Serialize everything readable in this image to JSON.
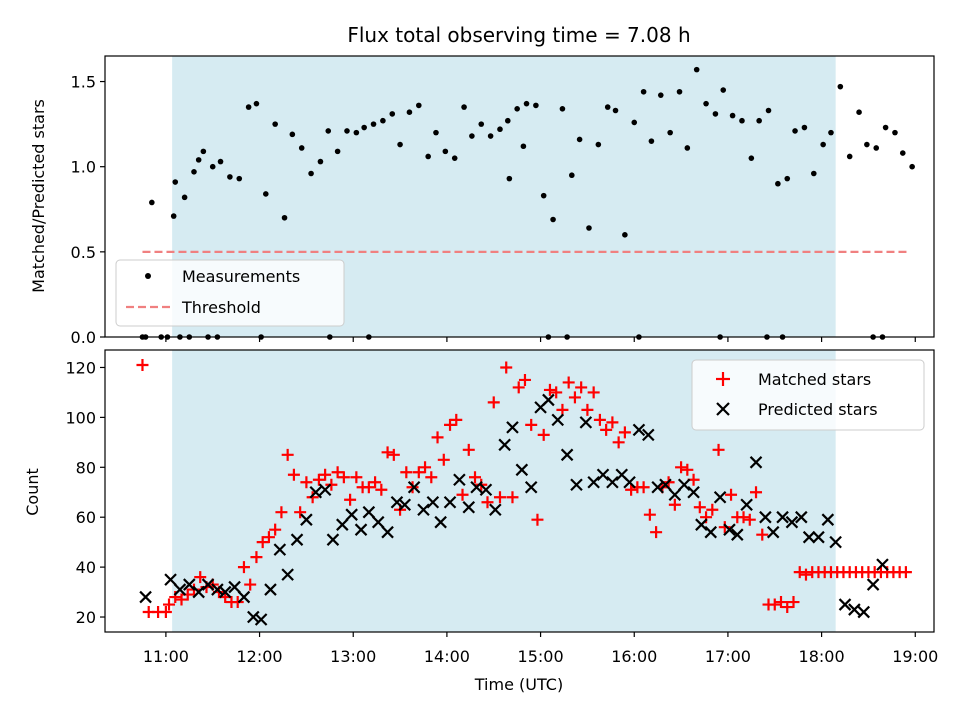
{
  "chart_data": [
    {
      "type": "scatter",
      "title": "Flux total observing time = 7.08 h",
      "xlabel": "",
      "ylabel": "Matched/Predicted stars",
      "xlim": [
        "10:21",
        "19:12"
      ],
      "ylim": [
        0,
        1.65
      ],
      "x_tick_labels": [
        "11:00",
        "12:00",
        "13:00",
        "14:00",
        "15:00",
        "16:00",
        "17:00",
        "18:00",
        "19:00"
      ],
      "y_ticks": [
        0.0,
        0.5,
        1.0,
        1.5
      ],
      "y_tick_labels": [
        "0.0",
        "0.5",
        "1.0",
        "1.5"
      ],
      "shaded_region": {
        "start": "11:04",
        "end": "18:09",
        "color": "#add8e6"
      },
      "legend_position": "lower-left",
      "series": [
        {
          "name": "Measurements",
          "marker": "dot",
          "color": "#000000",
          "x": [
            "10:47",
            "10:51",
            "10:57",
            "11:01",
            "11:06",
            "11:12",
            "11:18",
            "11:24",
            "11:30",
            "11:35",
            "11:41",
            "11:47",
            "11:53",
            "11:58",
            "12:04",
            "12:10",
            "12:16",
            "12:21",
            "12:27",
            "12:33",
            "12:39",
            "12:44",
            "12:50",
            "12:56",
            "13:02",
            "13:07",
            "13:13",
            "13:19",
            "13:25",
            "13:30",
            "13:36",
            "13:42",
            "13:48",
            "13:53",
            "13:59",
            "14:05",
            "14:11",
            "14:16",
            "14:22",
            "14:28",
            "14:34",
            "14:39",
            "14:45",
            "14:51",
            "14:57",
            "15:02",
            "15:08",
            "15:14",
            "15:20",
            "15:25",
            "15:31",
            "15:37",
            "15:43",
            "15:48",
            "15:54",
            "16:00",
            "16:06",
            "16:11",
            "16:17",
            "16:23",
            "16:29",
            "16:34",
            "16:40",
            "16:46",
            "16:52",
            "16:57",
            "17:03",
            "17:09",
            "17:15",
            "17:20",
            "17:26",
            "17:32",
            "17:38",
            "17:43",
            "17:49",
            "17:55",
            "18:01",
            "18:06",
            "18:12",
            "18:18",
            "18:24",
            "18:29",
            "18:35",
            "18:41",
            "18:47",
            "18:52",
            "18:58",
            "10:45",
            "11:05",
            "11:09",
            "11:15",
            "11:21",
            "11:27",
            "11:33",
            "12:01",
            "12:45",
            "13:10",
            "14:40",
            "14:49",
            "15:05",
            "15:17",
            "16:03",
            "16:55",
            "17:25",
            "17:35",
            "18:33",
            "18:39"
          ],
          "y": [
            0.0,
            0.79,
            0.0,
            0.0,
            0.91,
            0.82,
            0.97,
            1.09,
            1.0,
            1.03,
            0.94,
            0.93,
            1.35,
            1.37,
            0.84,
            1.25,
            0.7,
            1.19,
            1.11,
            0.96,
            1.03,
            1.21,
            1.09,
            1.21,
            1.2,
            1.23,
            1.25,
            1.27,
            1.31,
            1.13,
            1.32,
            1.36,
            1.06,
            1.2,
            1.09,
            1.05,
            1.35,
            1.18,
            1.25,
            1.18,
            1.22,
            1.27,
            1.34,
            1.37,
            1.36,
            0.83,
            0.69,
            1.34,
            0.95,
            1.16,
            0.64,
            1.13,
            1.35,
            1.33,
            0.6,
            1.26,
            1.44,
            1.15,
            1.42,
            1.2,
            1.44,
            1.11,
            1.57,
            1.37,
            1.31,
            1.45,
            1.3,
            1.27,
            1.05,
            1.27,
            1.33,
            0.9,
            0.93,
            1.21,
            1.23,
            0.96,
            1.13,
            1.2,
            1.47,
            1.06,
            1.32,
            1.13,
            1.11,
            1.23,
            1.2,
            1.08,
            1.0,
            0.0,
            0.71,
            0.0,
            0.0,
            1.04,
            0.0,
            0.0,
            0.0,
            0.0,
            0.0,
            0.93,
            1.12,
            0.0,
            0.0,
            0.0,
            0.0,
            0.0,
            0.0,
            0.0,
            0.0
          ]
        },
        {
          "name": "Threshold",
          "style": "dashed",
          "color": "#f08080",
          "x": [
            "10:45",
            "18:55"
          ],
          "y": [
            0.5,
            0.5
          ]
        }
      ]
    },
    {
      "type": "scatter",
      "title": "",
      "xlabel": "Time (UTC)",
      "ylabel": "Count",
      "xlim": [
        "10:21",
        "19:12"
      ],
      "ylim": [
        14,
        127
      ],
      "x_tick_labels": [
        "11:00",
        "12:00",
        "13:00",
        "14:00",
        "15:00",
        "16:00",
        "17:00",
        "18:00",
        "19:00"
      ],
      "y_ticks": [
        20,
        40,
        60,
        80,
        100,
        120
      ],
      "y_tick_labels": [
        "20",
        "40",
        "60",
        "80",
        "100",
        "120"
      ],
      "shaded_region": {
        "start": "11:04",
        "end": "18:09",
        "color": "#add8e6"
      },
      "legend_position": "upper-right",
      "series": [
        {
          "name": "Matched stars",
          "marker": "plus",
          "color": "#ff0000",
          "x": [
            "10:45",
            "10:49",
            "10:55",
            "11:00",
            "11:02",
            "11:06",
            "11:10",
            "11:14",
            "11:18",
            "11:22",
            "11:26",
            "11:30",
            "11:34",
            "11:38",
            "11:42",
            "11:46",
            "11:50",
            "11:54",
            "11:58",
            "12:02",
            "12:06",
            "12:10",
            "12:14",
            "12:18",
            "12:22",
            "12:26",
            "12:30",
            "12:34",
            "12:38",
            "12:42",
            "12:46",
            "12:50",
            "12:54",
            "12:58",
            "13:02",
            "13:06",
            "13:10",
            "13:14",
            "13:18",
            "13:22",
            "13:26",
            "13:30",
            "13:34",
            "13:38",
            "13:42",
            "13:46",
            "13:50",
            "13:54",
            "13:58",
            "14:02",
            "14:06",
            "14:10",
            "14:14",
            "14:18",
            "14:22",
            "14:26",
            "14:30",
            "14:34",
            "14:38",
            "14:42",
            "14:46",
            "14:50",
            "14:54",
            "14:58",
            "15:02",
            "15:06",
            "15:10",
            "15:14",
            "15:18",
            "15:22",
            "15:26",
            "15:30",
            "15:34",
            "15:38",
            "15:42",
            "15:46",
            "15:50",
            "15:54",
            "15:58",
            "16:02",
            "16:06",
            "16:10",
            "16:14",
            "16:18",
            "16:22",
            "16:26",
            "16:30",
            "16:34",
            "16:38",
            "16:42",
            "16:46",
            "16:50",
            "16:54",
            "16:58",
            "17:02",
            "17:06",
            "17:10",
            "17:14",
            "17:18",
            "17:22",
            "17:26",
            "17:30",
            "17:34",
            "17:38",
            "17:42",
            "17:46",
            "17:50",
            "17:54",
            "17:58",
            "18:02",
            "18:06",
            "18:10",
            "18:14",
            "18:18",
            "18:22",
            "18:26",
            "18:30",
            "18:34",
            "18:38",
            "18:42",
            "18:46",
            "18:50",
            "18:54"
          ],
          "y": [
            121,
            22,
            22,
            22,
            25,
            28,
            27,
            29,
            31,
            36,
            32,
            33,
            30,
            28,
            26,
            26,
            40,
            33,
            44,
            50,
            52,
            55,
            62,
            85,
            77,
            62,
            74,
            68,
            75,
            77,
            73,
            78,
            76,
            67,
            76,
            72,
            72,
            74,
            71,
            86,
            85,
            63,
            78,
            72,
            78,
            80,
            76,
            92,
            83,
            97,
            99,
            69,
            87,
            76,
            73,
            66,
            106,
            68,
            120,
            68,
            112,
            115,
            97,
            59,
            93,
            111,
            110,
            103,
            114,
            108,
            112,
            103,
            110,
            99,
            95,
            98,
            90,
            94,
            71,
            72,
            72,
            61,
            54,
            72,
            74,
            65,
            80,
            79,
            75,
            64,
            60,
            63,
            87,
            56,
            69,
            60,
            60,
            59,
            70,
            53,
            25,
            25,
            26,
            24,
            26,
            38,
            37,
            38,
            38,
            38,
            38,
            38,
            38,
            38,
            38,
            38,
            38,
            38,
            38,
            38,
            38,
            38,
            38
          ]
        },
        {
          "name": "Predicted stars",
          "marker": "x",
          "color": "#000000",
          "x": [
            "10:47",
            "11:03",
            "11:09",
            "11:15",
            "11:21",
            "11:27",
            "11:33",
            "11:38",
            "11:44",
            "11:50",
            "11:56",
            "12:01",
            "12:07",
            "12:13",
            "12:18",
            "12:24",
            "12:30",
            "12:36",
            "12:42",
            "12:47",
            "12:53",
            "12:59",
            "13:05",
            "13:10",
            "13:16",
            "13:22",
            "13:28",
            "13:33",
            "13:39",
            "13:45",
            "13:51",
            "13:56",
            "14:02",
            "14:08",
            "14:14",
            "14:19",
            "14:25",
            "14:31",
            "14:37",
            "14:42",
            "14:48",
            "14:54",
            "15:00",
            "15:05",
            "15:11",
            "15:17",
            "15:23",
            "15:29",
            "15:34",
            "15:40",
            "15:46",
            "15:52",
            "15:57",
            "16:03",
            "16:09",
            "16:15",
            "16:20",
            "16:26",
            "16:32",
            "16:38",
            "16:43",
            "16:49",
            "16:55",
            "17:01",
            "17:06",
            "17:12",
            "17:18",
            "17:24",
            "17:29",
            "17:35",
            "17:41",
            "17:47",
            "17:52",
            "17:58",
            "18:04",
            "18:09",
            "18:15",
            "18:21",
            "18:27",
            "18:33",
            "18:39"
          ],
          "y": [
            28,
            35,
            31,
            33,
            30,
            33,
            31,
            30,
            32,
            28,
            20,
            19,
            31,
            47,
            37,
            51,
            59,
            70,
            71,
            51,
            57,
            61,
            55,
            62,
            58,
            54,
            66,
            65,
            72,
            63,
            66,
            58,
            66,
            75,
            64,
            72,
            71,
            63,
            89,
            96,
            79,
            72,
            104,
            107,
            99,
            85,
            73,
            98,
            74,
            77,
            74,
            77,
            74,
            95,
            93,
            72,
            73,
            69,
            73,
            70,
            57,
            54,
            68,
            55,
            53,
            65,
            82,
            60,
            54,
            60,
            58,
            60,
            52,
            52,
            59,
            50,
            25,
            23,
            22,
            33,
            41
          ]
        }
      ]
    }
  ]
}
